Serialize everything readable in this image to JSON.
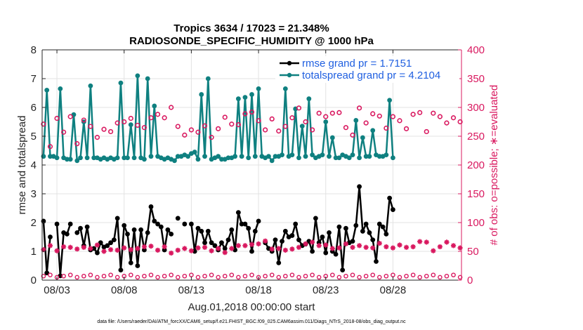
{
  "chart_data": {
    "type": "line",
    "title_line1": "Tropics 3634 / 17023 = 21.348%",
    "title_line2": "RADIOSONDE_SPECIFIC_HUMIDITY @ 1000 hPa",
    "ylabel_left": "rmse and totalspread",
    "ylabel_right": "# of obs: o=possible; ∗=evaluated",
    "xlabel": "Aug.01,2018 00:00:00 start",
    "footnote": "data file: /Users/raeder/DAI/ATM_forcXX/CAM6_setup/f.e21.FHIST_BGC.f09_025.CAM6assim.011/Diags_NTrS_2018-08/obs_diag_output.nc",
    "xlim": [
      1.9,
      33.1
    ],
    "ylim_left": [
      0,
      8
    ],
    "ylim_right": [
      0,
      400
    ],
    "x_ticks": [
      3,
      8,
      13,
      18,
      23,
      28
    ],
    "x_tick_labels": [
      "08/03",
      "08/08",
      "08/13",
      "08/18",
      "08/23",
      "08/28"
    ],
    "y_left_ticks": [
      "0",
      "1",
      "2",
      "3",
      "4",
      "5",
      "6",
      "7",
      "8"
    ],
    "y_right_ticks": [
      "0",
      "50",
      "100",
      "150",
      "200",
      "250",
      "300",
      "350",
      "400"
    ],
    "colors": {
      "rmse": "#000000",
      "spread": "#0f8080",
      "counts": "#d9185f",
      "legend_text": "#1f5fe0"
    },
    "x_start": 2.0,
    "x_step": 0.25,
    "series": [
      {
        "name": "rmse grand pr = 1.7151",
        "axis": "left",
        "color": "#000000",
        "marker": "dot",
        "values": [
          2.05,
          0.25,
          1.5,
          null,
          1.95,
          0.15,
          1.65,
          1.6,
          1.95,
          null,
          1.65,
          1.8,
          1.2,
          1.85,
          1.05,
          1.1,
          0.95,
          1.3,
          1.15,
          1.2,
          1.3,
          1.4,
          2.15,
          0.35,
          1.9,
          1.6,
          0.6,
          1.75,
          0.5,
          1.75,
          1.05,
          1.65,
          2.55,
          2.05,
          1.95,
          1.85,
          1.05,
          1.75,
          1.6,
          null,
          2.15,
          null,
          1.95,
          null,
          1.95,
          1.0,
          1.8,
          1.7,
          1.3,
          1.7,
          1.3,
          1.2,
          1.05,
          1.3,
          1.1,
          1.4,
          1.75,
          1.05,
          2.35,
          1.95,
          1.95,
          1.8,
          1.0,
          1.7,
          2.05,
          null,
          1.3,
          1.1,
          1.0,
          1.4,
          0.6,
          1.35,
          1.7,
          1.5,
          1.55,
          1.95,
          1.4,
          1.2,
          1.25,
          1.35,
          1.0,
          2.15,
          1.3,
          1.5,
          0.95,
          1.65,
          1.0,
          0.9,
          1.85,
          0.35,
          1.8,
          1.3,
          1.35,
          1.9,
          3.25,
          1.7,
          1.95,
          1.65,
          1.4,
          0.65,
          1.95,
          1.85,
          1.6,
          2.85,
          2.45
        ]
      },
      {
        "name": "totalspread grand pr = 4.2104",
        "axis": "left",
        "color": "#0f8080",
        "marker": "dot",
        "values": [
          4.3,
          6.6,
          4.3,
          4.3,
          4.25,
          6.65,
          4.25,
          4.2,
          4.2,
          5.75,
          4.15,
          4.25,
          5.5,
          4.25,
          6.75,
          4.25,
          4.25,
          4.2,
          4.25,
          4.2,
          4.25,
          4.2,
          4.25,
          6.85,
          4.25,
          4.25,
          5.4,
          4.25,
          7.1,
          4.25,
          4.2,
          7.0,
          4.3,
          6.05,
          4.3,
          4.25,
          4.2,
          4.25,
          4.2,
          4.15,
          4.3,
          4.3,
          4.35,
          4.3,
          4.4,
          4.45,
          4.2,
          6.45,
          4.3,
          7.0,
          4.2,
          4.25,
          4.3,
          4.2,
          4.2,
          4.25,
          4.25,
          4.3,
          6.3,
          4.3,
          6.35,
          4.25,
          6.45,
          4.3,
          6.65,
          4.3,
          4.25,
          4.3,
          4.15,
          4.3,
          4.3,
          4.35,
          6.65,
          4.3,
          4.35,
          5.95,
          4.25,
          5.35,
          4.3,
          6.3,
          4.35,
          4.25,
          4.3,
          4.35,
          5.5,
          4.3,
          4.95,
          4.25,
          4.25,
          4.35,
          4.3,
          4.25,
          4.35,
          5.55,
          4.25,
          4.95,
          4.3,
          4.3,
          5.2,
          4.35,
          4.3,
          4.3,
          4.35,
          6.25,
          4.25
        ]
      },
      {
        "name": "possible obs",
        "axis": "right",
        "color": "#d9185f",
        "marker": "circle",
        "x": [
          2.0,
          2.5,
          3.0,
          3.5,
          4.0,
          4.5,
          5.0,
          5.5,
          6.0,
          6.5,
          7.0,
          7.5,
          8.0,
          8.5,
          9.0,
          9.5,
          10.0,
          10.5,
          11.0,
          11.5,
          12.0,
          12.5,
          13.0,
          13.5,
          14.0,
          14.5,
          15.0,
          15.5,
          16.0,
          16.5,
          17.0,
          17.5,
          18.0,
          18.5,
          19.0,
          19.5,
          20.0,
          20.5,
          21.0,
          21.5,
          22.0,
          22.5,
          23.0,
          23.5,
          24.0,
          24.5,
          25.0,
          25.5,
          26.0,
          26.5,
          27.0,
          27.5,
          28.0,
          28.5,
          29.0,
          29.5,
          30.0,
          30.5,
          31.0,
          31.5,
          32.0,
          32.5,
          33.0
        ],
        "values": [
          271,
          232,
          281,
          257,
          284,
          237,
          278,
          267,
          248,
          262,
          258,
          273,
          275,
          281,
          269,
          265,
          282,
          288,
          282,
          300,
          267,
          252,
          261,
          257,
          268,
          248,
          263,
          283,
          271,
          270,
          289,
          292,
          277,
          261,
          280,
          259,
          267,
          282,
          299,
          275,
          261,
          290,
          284,
          290,
          291,
          265,
          252,
          299,
          273,
          289,
          285,
          264,
          284,
          277,
          263,
          288,
          291,
          258,
          290,
          284,
          273,
          282,
          275
        ]
      },
      {
        "name": "evaluated obs",
        "axis": "right",
        "color": "#d9185f",
        "marker": "asterisk",
        "x": [
          2.0,
          2.5,
          3.0,
          3.5,
          4.0,
          4.5,
          5.0,
          5.5,
          6.0,
          6.5,
          7.0,
          7.5,
          8.0,
          8.5,
          9.0,
          9.5,
          10.0,
          10.5,
          11.0,
          11.5,
          12.0,
          12.5,
          13.0,
          13.5,
          14.0,
          14.5,
          15.0,
          15.5,
          16.0,
          16.5,
          17.0,
          17.5,
          18.0,
          18.5,
          19.0,
          19.5,
          20.0,
          20.5,
          21.0,
          21.5,
          22.0,
          22.5,
          23.0,
          23.5,
          24.0,
          24.5,
          25.0,
          25.5,
          26.0,
          26.5,
          27.0,
          27.5,
          28.0,
          28.5,
          29.0,
          29.5,
          30.0,
          30.5,
          31.0,
          31.5,
          32.0,
          32.5,
          33.0
        ],
        "values": [
          53,
          60,
          51,
          58,
          57,
          54,
          57,
          55,
          61,
          50,
          53,
          52,
          56,
          53,
          55,
          58,
          59,
          52,
          58,
          47,
          52,
          55,
          51,
          56,
          57,
          51,
          55,
          48,
          55,
          60,
          60,
          62,
          63,
          68,
          54,
          55,
          52,
          54,
          57,
          63,
          66,
          60,
          61,
          55,
          56,
          63,
          57,
          60,
          57,
          56,
          64,
          58,
          56,
          61,
          57,
          58,
          67,
          66,
          51,
          58,
          66,
          60,
          56
        ]
      }
    ],
    "legend": [
      {
        "label": "rmse grand pr = 1.7151",
        "color": "#000000"
      },
      {
        "label": "totalspread grand pr = 4.2104",
        "color": "#0f8080"
      }
    ]
  }
}
